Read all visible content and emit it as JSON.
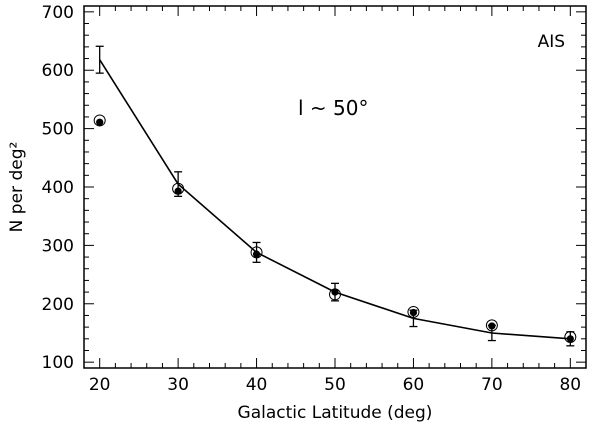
{
  "chart_data": {
    "type": "line",
    "xlabel": "Galactic Latitude (deg)",
    "ylabel": "N per deg²",
    "xlim": [
      18,
      82
    ],
    "ylim": [
      90,
      710
    ],
    "xticks": [
      20,
      30,
      40,
      50,
      60,
      70,
      80
    ],
    "yticks": [
      100,
      200,
      300,
      400,
      500,
      600,
      700
    ],
    "annotation_survey": "AIS",
    "annotation_longitude": "l ~ 50°",
    "grid": false,
    "series": [
      {
        "kind": "model-line-with-errorbars",
        "x": [
          20,
          30,
          40,
          50,
          60,
          70,
          80
        ],
        "y": [
          618,
          405,
          288,
          220,
          175,
          150,
          140
        ],
        "err": [
          23,
          21,
          17,
          15,
          14,
          13,
          12
        ]
      },
      {
        "kind": "filled-dots",
        "x": [
          20,
          30,
          40,
          50,
          60,
          70,
          80
        ],
        "y": [
          511,
          393,
          285,
          220,
          185,
          162,
          140
        ]
      },
      {
        "kind": "open-circles",
        "x": [
          20,
          30,
          40,
          50,
          60,
          70,
          80
        ],
        "y": [
          514,
          397,
          288,
          216,
          186,
          163,
          143
        ]
      }
    ]
  }
}
